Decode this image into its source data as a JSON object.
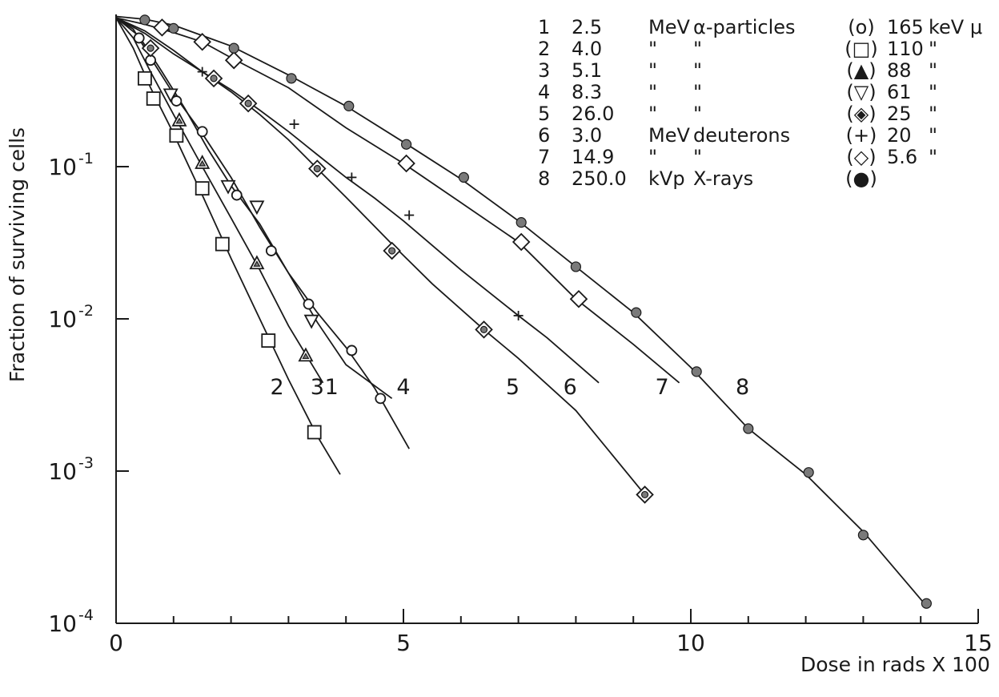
{
  "chart_data": {
    "type": "scatter",
    "title": "",
    "xlabel": "Dose in rads X 100",
    "ylabel": "Fraction of surviving cells",
    "xlim": [
      0,
      15
    ],
    "ylim": [
      0.0001,
      1
    ],
    "yscale": "log",
    "x_ticks": [
      {
        "value": 0,
        "label": "0"
      },
      {
        "value": 5,
        "label": "5"
      },
      {
        "value": 10,
        "label": "10"
      },
      {
        "value": 15,
        "label": "15"
      }
    ],
    "y_ticks": [
      {
        "value": 0.1,
        "base": "10",
        "exp": "-1"
      },
      {
        "value": 0.01,
        "base": "10",
        "exp": "-2"
      },
      {
        "value": 0.001,
        "base": "10",
        "exp": "-3"
      },
      {
        "value": 0.0001,
        "base": "10",
        "exp": "-4"
      }
    ],
    "grid": false,
    "legend_position": "top-right",
    "legend": [
      {
        "num": "1",
        "energy": "2.5",
        "unit": "MeV",
        "particle": "α-particles",
        "symbol": "o",
        "let": "165",
        "let_unit": "keV μ"
      },
      {
        "num": "2",
        "energy": "4.0",
        "unit": "\"",
        "particle": "\"",
        "symbol": "□",
        "let": "110",
        "let_unit": "\""
      },
      {
        "num": "3",
        "energy": "5.1",
        "unit": "\"",
        "particle": "\"",
        "symbol": "▲",
        "let": "88",
        "let_unit": "\""
      },
      {
        "num": "4",
        "energy": "8.3",
        "unit": "\"",
        "particle": "\"",
        "symbol": "▽",
        "let": "61",
        "let_unit": "\""
      },
      {
        "num": "5",
        "energy": "26.0",
        "unit": "\"",
        "particle": "\"",
        "symbol": "◈",
        "let": "25",
        "let_unit": "\""
      },
      {
        "num": "6",
        "energy": "3.0",
        "unit": "MeV",
        "particle": "deuterons",
        "symbol": "+",
        "let": "20",
        "let_unit": "\""
      },
      {
        "num": "7",
        "energy": "14.9",
        "unit": "\"",
        "particle": "\"",
        "symbol": "◇",
        "let": "5.6",
        "let_unit": "\""
      },
      {
        "num": "8",
        "energy": "250.0",
        "unit": "kVp",
        "particle": "X-rays",
        "symbol": "●",
        "let": "",
        "let_unit": ""
      }
    ],
    "series": [
      {
        "name": "1",
        "marker": "circle",
        "points": [
          [
            0.4,
            0.7
          ],
          [
            0.6,
            0.5
          ],
          [
            1.05,
            0.27
          ],
          [
            1.5,
            0.17
          ],
          [
            2.1,
            0.065
          ],
          [
            2.7,
            0.028
          ],
          [
            3.35,
            0.0125
          ],
          [
            4.1,
            0.0062
          ],
          [
            4.6,
            0.003
          ]
        ],
        "curve": [
          [
            0,
            0.95
          ],
          [
            0.3,
            0.8
          ],
          [
            0.6,
            0.52
          ],
          [
            1.0,
            0.3
          ],
          [
            1.5,
            0.165
          ],
          [
            2.0,
            0.085
          ],
          [
            2.5,
            0.04
          ],
          [
            3.0,
            0.02
          ],
          [
            3.5,
            0.011
          ],
          [
            4.0,
            0.0065
          ],
          [
            4.5,
            0.0035
          ],
          [
            5.1,
            0.0014
          ]
        ]
      },
      {
        "name": "2",
        "marker": "square",
        "points": [
          [
            0.5,
            0.38
          ],
          [
            0.65,
            0.28
          ],
          [
            1.05,
            0.16
          ],
          [
            1.5,
            0.072
          ],
          [
            1.85,
            0.031
          ],
          [
            2.65,
            0.0072
          ],
          [
            3.45,
            0.0018
          ]
        ],
        "curve": [
          [
            0,
            0.95
          ],
          [
            0.3,
            0.6
          ],
          [
            0.6,
            0.33
          ],
          [
            1.0,
            0.165
          ],
          [
            1.5,
            0.065
          ],
          [
            2.0,
            0.025
          ],
          [
            2.5,
            0.01
          ],
          [
            3.0,
            0.004
          ],
          [
            3.5,
            0.0017
          ],
          [
            3.9,
            0.00095
          ]
        ]
      },
      {
        "name": "3",
        "marker": "triangle-up",
        "points": [
          [
            1.1,
            0.2
          ],
          [
            1.5,
            0.105
          ],
          [
            2.45,
            0.023
          ],
          [
            3.3,
            0.0057
          ]
        ],
        "curve": [
          [
            0,
            0.95
          ],
          [
            0.3,
            0.7
          ],
          [
            0.6,
            0.42
          ],
          [
            1.0,
            0.22
          ],
          [
            1.5,
            0.1
          ],
          [
            2.0,
            0.046
          ],
          [
            2.5,
            0.021
          ],
          [
            3.0,
            0.009
          ],
          [
            3.6,
            0.0038
          ]
        ]
      },
      {
        "name": "4",
        "marker": "triangle-down",
        "points": [
          [
            0.95,
            0.3
          ],
          [
            1.95,
            0.075
          ],
          [
            2.45,
            0.055
          ],
          [
            3.4,
            0.0098
          ]
        ],
        "curve": [
          [
            0,
            0.95
          ],
          [
            0.4,
            0.72
          ],
          [
            0.8,
            0.42
          ],
          [
            1.2,
            0.24
          ],
          [
            1.6,
            0.13
          ],
          [
            2.0,
            0.075
          ],
          [
            2.5,
            0.042
          ],
          [
            3.0,
            0.02
          ],
          [
            3.5,
            0.0095
          ],
          [
            4.0,
            0.005
          ],
          [
            4.8,
            0.003
          ]
        ]
      },
      {
        "name": "5",
        "marker": "diamond-dot",
        "points": [
          [
            0.6,
            0.6
          ],
          [
            1.7,
            0.38
          ],
          [
            2.3,
            0.26
          ],
          [
            3.5,
            0.097
          ],
          [
            4.8,
            0.028
          ],
          [
            6.4,
            0.0085
          ],
          [
            9.2,
            0.0007
          ]
        ],
        "curve": [
          [
            0,
            0.95
          ],
          [
            0.5,
            0.75
          ],
          [
            1.0,
            0.55
          ],
          [
            1.5,
            0.42
          ],
          [
            2.0,
            0.31
          ],
          [
            2.5,
            0.22
          ],
          [
            3.0,
            0.15
          ],
          [
            3.5,
            0.097
          ],
          [
            4.0,
            0.063
          ],
          [
            4.8,
            0.031
          ],
          [
            5.5,
            0.017
          ],
          [
            6.4,
            0.0085
          ],
          [
            7.0,
            0.0055
          ],
          [
            8.0,
            0.0025
          ],
          [
            9.2,
            0.0007
          ]
        ]
      },
      {
        "name": "6",
        "marker": "plus",
        "points": [
          [
            1.5,
            0.42
          ],
          [
            3.1,
            0.19
          ],
          [
            4.1,
            0.085
          ],
          [
            5.1,
            0.048
          ],
          [
            7.0,
            0.0105
          ]
        ],
        "curve": [
          [
            0,
            0.95
          ],
          [
            0.5,
            0.78
          ],
          [
            1.0,
            0.58
          ],
          [
            1.5,
            0.42
          ],
          [
            2.0,
            0.32
          ],
          [
            2.5,
            0.235
          ],
          [
            3.0,
            0.17
          ],
          [
            3.5,
            0.12
          ],
          [
            4.0,
            0.085
          ],
          [
            4.5,
            0.062
          ],
          [
            5.0,
            0.044
          ],
          [
            6.0,
            0.021
          ],
          [
            7.0,
            0.0105
          ],
          [
            7.5,
            0.0075
          ],
          [
            8.4,
            0.0038
          ]
        ]
      },
      {
        "name": "7",
        "marker": "diamond",
        "points": [
          [
            0.8,
            0.82
          ],
          [
            1.5,
            0.66
          ],
          [
            2.05,
            0.5
          ],
          [
            5.05,
            0.105
          ],
          [
            7.05,
            0.032
          ],
          [
            8.05,
            0.0135
          ]
        ],
        "curve": [
          [
            0,
            0.95
          ],
          [
            0.5,
            0.86
          ],
          [
            1.0,
            0.76
          ],
          [
            1.5,
            0.66
          ],
          [
            2.0,
            0.52
          ],
          [
            3.0,
            0.33
          ],
          [
            4.0,
            0.18
          ],
          [
            5.0,
            0.105
          ],
          [
            6.0,
            0.058
          ],
          [
            7.0,
            0.032
          ],
          [
            8.0,
            0.0135
          ],
          [
            9.0,
            0.0068
          ],
          [
            9.8,
            0.0038
          ]
        ]
      },
      {
        "name": "8",
        "marker": "filled-circle",
        "points": [
          [
            0.5,
            0.92
          ],
          [
            1.0,
            0.81
          ],
          [
            2.05,
            0.6
          ],
          [
            3.05,
            0.38
          ],
          [
            4.05,
            0.25
          ],
          [
            5.05,
            0.14
          ],
          [
            6.05,
            0.085
          ],
          [
            7.05,
            0.043
          ],
          [
            8.0,
            0.022
          ],
          [
            9.05,
            0.011
          ],
          [
            10.1,
            0.0045
          ],
          [
            11.0,
            0.0019
          ],
          [
            12.05,
            0.00098
          ],
          [
            13.0,
            0.00038
          ],
          [
            14.1,
            0.000135
          ]
        ],
        "curve": [
          [
            0,
            0.97
          ],
          [
            0.5,
            0.93
          ],
          [
            1.0,
            0.85
          ],
          [
            2.0,
            0.62
          ],
          [
            3.0,
            0.4
          ],
          [
            4.0,
            0.25
          ],
          [
            5.0,
            0.145
          ],
          [
            6.0,
            0.083
          ],
          [
            7.0,
            0.044
          ],
          [
            8.0,
            0.022
          ],
          [
            9.0,
            0.011
          ],
          [
            10.0,
            0.0048
          ],
          [
            11.0,
            0.0019
          ],
          [
            12.0,
            0.00095
          ],
          [
            13.0,
            0.0004
          ],
          [
            14.1,
            0.00013
          ]
        ]
      }
    ],
    "curve_labels": [
      {
        "text": "2",
        "x": 2.8,
        "y": 0.0032
      },
      {
        "text": "3",
        "x": 3.5,
        "y": 0.0032
      },
      {
        "text": "1",
        "x": 3.75,
        "y": 0.0032
      },
      {
        "text": "4",
        "x": 5.0,
        "y": 0.0032
      },
      {
        "text": "5",
        "x": 6.9,
        "y": 0.0032
      },
      {
        "text": "6",
        "x": 7.9,
        "y": 0.0032
      },
      {
        "text": "7",
        "x": 9.5,
        "y": 0.0032
      },
      {
        "text": "8",
        "x": 10.9,
        "y": 0.0032
      }
    ]
  }
}
